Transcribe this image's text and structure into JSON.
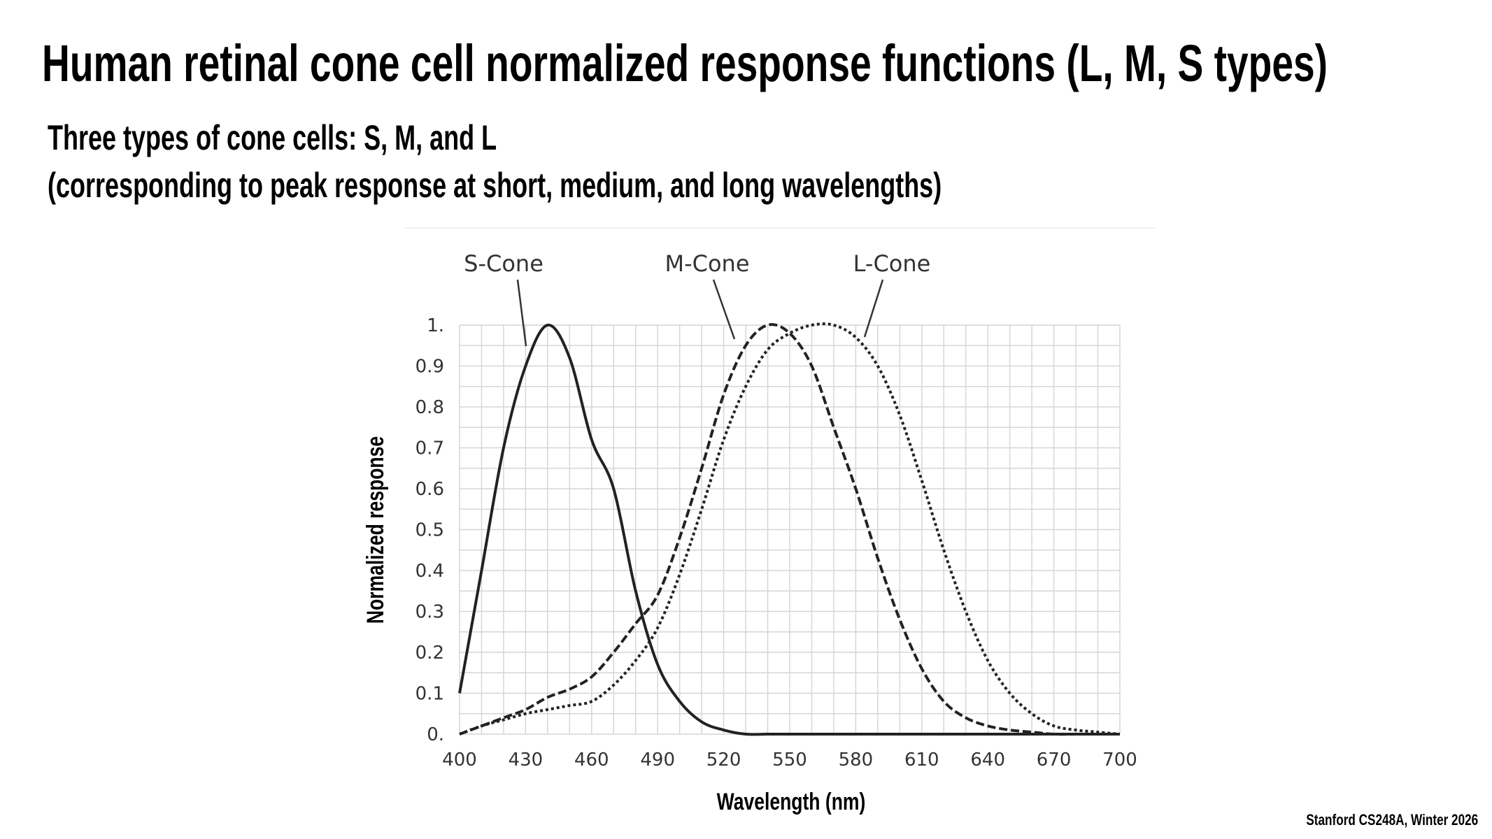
{
  "slide": {
    "title": "Human retinal cone cell normalized response functions (L, M, S types)",
    "subtitle_line1": "Three types of cone cells: S, M, and L",
    "subtitle_line2": "(corresponding to peak response at short, medium, and long wavelengths)",
    "footer": "Stanford CS248A, Winter 2026"
  },
  "chart_data": {
    "type": "line",
    "xlabel": "Wavelength (nm)",
    "ylabel": "Normalized response",
    "xlim": [
      400,
      700
    ],
    "ylim": [
      0,
      1
    ],
    "xticks": [
      "400",
      "430",
      "460",
      "490",
      "520",
      "550",
      "580",
      "610",
      "640",
      "670",
      "700"
    ],
    "yticks": [
      "0.",
      "0.1",
      "0.2",
      "0.3",
      "0.4",
      "0.5",
      "0.6",
      "0.7",
      "0.8",
      "0.9",
      "1."
    ],
    "grid": true,
    "x": [
      400,
      410,
      420,
      430,
      440,
      450,
      460,
      470,
      480,
      490,
      500,
      510,
      520,
      530,
      540,
      550,
      560,
      570,
      580,
      590,
      600,
      610,
      620,
      630,
      640,
      650,
      660,
      670,
      680,
      690,
      700
    ],
    "series": [
      {
        "name": "S-Cone",
        "style": "solid",
        "values": [
          0.1,
          0.4,
          0.7,
          0.9,
          1.0,
          0.92,
          0.72,
          0.6,
          0.35,
          0.17,
          0.08,
          0.03,
          0.01,
          0.0,
          0,
          0,
          0,
          0,
          0,
          0,
          0,
          0,
          0,
          0,
          0,
          0,
          0,
          0,
          0,
          0,
          0
        ]
      },
      {
        "name": "M-Cone",
        "style": "dashed",
        "values": [
          0.0,
          0.02,
          0.04,
          0.06,
          0.09,
          0.11,
          0.14,
          0.2,
          0.27,
          0.34,
          0.48,
          0.65,
          0.83,
          0.95,
          1.0,
          0.98,
          0.9,
          0.75,
          0.6,
          0.43,
          0.28,
          0.16,
          0.08,
          0.04,
          0.02,
          0.01,
          0.005,
          0,
          0,
          0,
          0
        ]
      },
      {
        "name": "L-Cone",
        "style": "dotted",
        "values": [
          0.0,
          0.02,
          0.035,
          0.05,
          0.06,
          0.07,
          0.08,
          0.12,
          0.18,
          0.26,
          0.39,
          0.55,
          0.72,
          0.85,
          0.94,
          0.98,
          1.0,
          1.0,
          0.97,
          0.9,
          0.78,
          0.62,
          0.45,
          0.3,
          0.18,
          0.1,
          0.05,
          0.02,
          0.01,
          0.005,
          0
        ]
      }
    ],
    "colors": {
      "lines": "#222222",
      "grid": "#d6d6d6",
      "axis_text": "#333333"
    }
  }
}
